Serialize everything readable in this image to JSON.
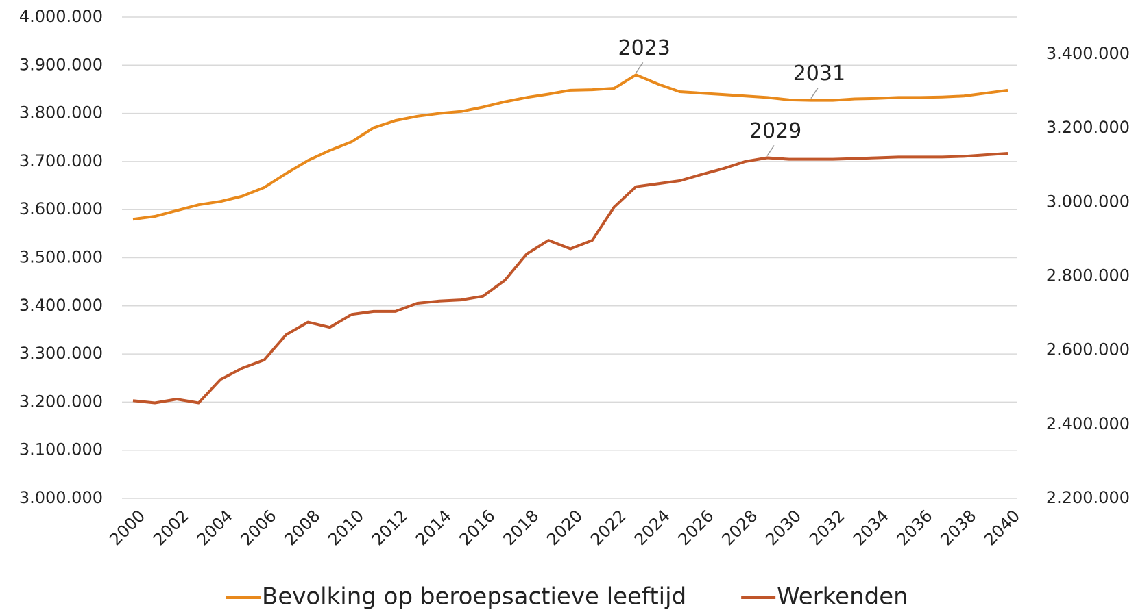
{
  "chart_data": {
    "type": "line",
    "x": [
      2000,
      2001,
      2002,
      2003,
      2004,
      2005,
      2006,
      2007,
      2008,
      2009,
      2010,
      2011,
      2012,
      2013,
      2014,
      2015,
      2016,
      2017,
      2018,
      2019,
      2020,
      2021,
      2022,
      2023,
      2024,
      2025,
      2026,
      2027,
      2028,
      2029,
      2030,
      2031,
      2032,
      2033,
      2034,
      2035,
      2036,
      2037,
      2038,
      2039,
      2040
    ],
    "xticks": [
      2000,
      2002,
      2004,
      2006,
      2008,
      2010,
      2012,
      2014,
      2016,
      2018,
      2020,
      2022,
      2024,
      2026,
      2028,
      2030,
      2032,
      2034,
      2036,
      2038,
      2040
    ],
    "series": [
      {
        "name": "Bevolking op beroepsactieve leeftijd",
        "color": "#e8891c",
        "axis": "y",
        "values": [
          3580000,
          3586000,
          3598000,
          3610000,
          3617000,
          3628000,
          3646000,
          3675000,
          3702000,
          3723000,
          3741000,
          3770000,
          3785000,
          3794000,
          3800000,
          3804000,
          3813000,
          3824000,
          3833000,
          3840000,
          3848000,
          3849000,
          3852000,
          3880000,
          3861000,
          3845000,
          3842000,
          3839000,
          3836000,
          3833000,
          3828000,
          3827000,
          3827000,
          3830000,
          3831000,
          3833000,
          3833000,
          3834000,
          3836000,
          3842000,
          3848000
        ]
      },
      {
        "name": "Werkenden",
        "color": "#c0562a",
        "axis": "y2",
        "values": [
          2464000,
          2458000,
          2468000,
          2458000,
          2521000,
          2552000,
          2574000,
          2642000,
          2676000,
          2662000,
          2697000,
          2705000,
          2705000,
          2727000,
          2733000,
          2736000,
          2746000,
          2789000,
          2860000,
          2897000,
          2874000,
          2897000,
          2987000,
          3042000,
          3050000,
          3058000,
          3075000,
          3091000,
          3110000,
          3120000,
          3116000,
          3116000,
          3116000,
          3118000,
          3120000,
          3122000,
          3122000,
          3122000,
          3124000,
          3128000,
          3132000
        ]
      }
    ],
    "ylim": [
      3000000,
      4000000
    ],
    "yticks": [
      {
        "value": 3000000,
        "label": "3.000.000"
      },
      {
        "value": 3100000,
        "label": "3.100.000"
      },
      {
        "value": 3200000,
        "label": "3.200.000"
      },
      {
        "value": 3300000,
        "label": "3.300.000"
      },
      {
        "value": 3400000,
        "label": "3.400.000"
      },
      {
        "value": 3500000,
        "label": "3.500.000"
      },
      {
        "value": 3600000,
        "label": "3.600.000"
      },
      {
        "value": 3700000,
        "label": "3.700.000"
      },
      {
        "value": 3800000,
        "label": "3.800.000"
      },
      {
        "value": 3900000,
        "label": "3.900.000"
      },
      {
        "value": 4000000,
        "label": "4.000.000"
      }
    ],
    "y2lim": [
      2200000,
      3500000
    ],
    "y2ticks": [
      {
        "value": 2200000,
        "label": "2.200.000"
      },
      {
        "value": 2400000,
        "label": "2.400.000"
      },
      {
        "value": 2600000,
        "label": "2.600.000"
      },
      {
        "value": 2800000,
        "label": "2.800.000"
      },
      {
        "value": 3000000,
        "label": "3.000.000"
      },
      {
        "value": 3200000,
        "label": "3.200.000"
      },
      {
        "value": 3400000,
        "label": "3.400.000"
      }
    ],
    "grid": true,
    "legend": "bottom",
    "annotations": [
      {
        "text": "2023",
        "series": 0,
        "x": 2023
      },
      {
        "text": "2031",
        "series": 0,
        "x": 2031
      },
      {
        "text": "2029",
        "series": 1,
        "x": 2029
      }
    ]
  }
}
